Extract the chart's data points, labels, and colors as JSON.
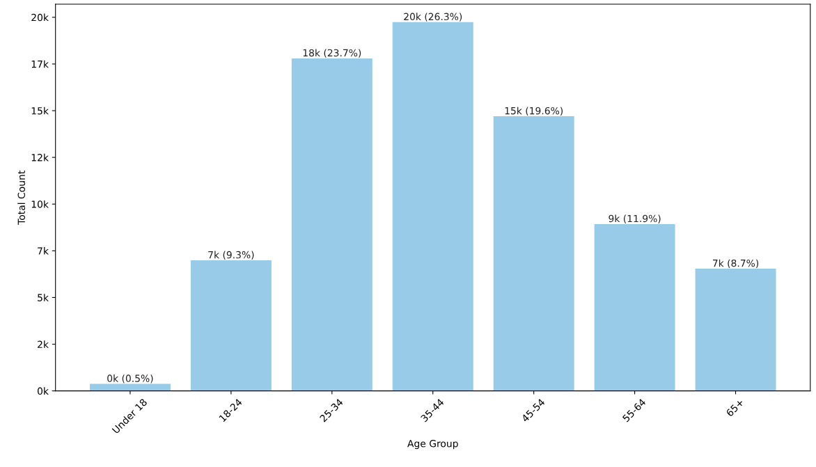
{
  "chart_data": {
    "type": "bar",
    "xlabel": "Age Group",
    "ylabel": "Total Count",
    "categories": [
      "Under 18",
      "18-24",
      "25-34",
      "35-44",
      "45-54",
      "55-64",
      "65+"
    ],
    "values": [
      375,
      6990,
      17800,
      19740,
      14700,
      8930,
      6540
    ],
    "value_labels": [
      "0k (0.5%)",
      "7k (9.3%)",
      "18k (23.7%)",
      "20k (26.3%)",
      "15k (19.6%)",
      "9k (11.9%)",
      "7k (8.7%)"
    ],
    "color": "#97cbe8",
    "ylim": [
      0,
      20700
    ],
    "yticks": [
      {
        "value": 0,
        "label": "0k"
      },
      {
        "value": 2500,
        "label": "2k"
      },
      {
        "value": 5000,
        "label": "5k"
      },
      {
        "value": 7500,
        "label": "7k"
      },
      {
        "value": 10000,
        "label": "10k"
      },
      {
        "value": 12500,
        "label": "12k"
      },
      {
        "value": 15000,
        "label": "15k"
      },
      {
        "value": 17500,
        "label": "17k"
      },
      {
        "value": 20000,
        "label": "20k"
      }
    ],
    "grid": false,
    "legend": false
  }
}
